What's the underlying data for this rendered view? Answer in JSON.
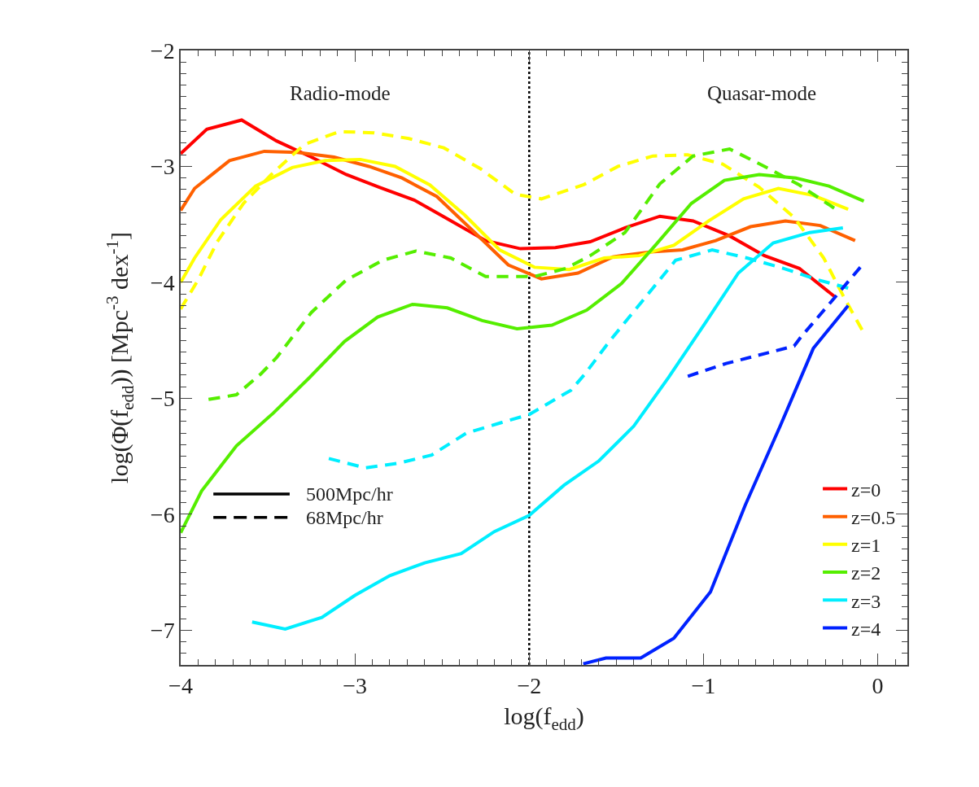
{
  "chart_data": {
    "type": "line",
    "xlabel": "log(f$_{edd}$)",
    "ylabel": "log(Φ(f$_{edd}$)) [Mpc$^{-3}$ dex$^{-1}$]",
    "annotations": [
      "Radio-mode",
      "Quasar-mode",
      "500Mpc/hr",
      "68Mpc/hr"
    ],
    "xlim": [
      -4,
      0.17
    ],
    "ylim": [
      -7.3,
      -2
    ],
    "xticks": [
      -4,
      -3,
      -2,
      -1,
      0
    ],
    "yticks": [
      -7,
      -6,
      -5,
      -4,
      -3,
      -2
    ],
    "grid": false,
    "legend": "bottom right",
    "ref_lines": [
      {
        "axis": "x",
        "value": -2,
        "color": "#000000",
        "line_style": "dotted"
      }
    ],
    "series": [
      {
        "name": "z=0",
        "color": "#ff0000",
        "line_style": "solid",
        "x": [
          -4,
          -3.85,
          -3.65,
          -3.45,
          -3.25,
          -3.05,
          -2.86,
          -2.66,
          -2.46,
          -2.25,
          -2.05,
          -1.85,
          -1.65,
          -1.45,
          -1.25,
          -1.06,
          -0.85,
          -0.65,
          -0.45,
          -0.25
        ],
        "values": [
          -2.89,
          -2.68,
          -2.6,
          -2.78,
          -2.92,
          -3.07,
          -3.18,
          -3.29,
          -3.46,
          -3.64,
          -3.71,
          -3.7,
          -3.65,
          -3.53,
          -3.43,
          -3.47,
          -3.6,
          -3.77,
          -3.88,
          -4.12
        ]
      },
      {
        "name": "z=0.5",
        "color": "#ff6000",
        "line_style": "solid",
        "x": [
          -4,
          -3.92,
          -3.72,
          -3.52,
          -3.33,
          -3.12,
          -2.92,
          -2.73,
          -2.53,
          -2.32,
          -2.12,
          -1.93,
          -1.72,
          -1.52,
          -1.32,
          -1.12,
          -0.93,
          -0.73,
          -0.53,
          -0.33,
          -0.13
        ],
        "values": [
          -3.38,
          -3.19,
          -2.95,
          -2.87,
          -2.88,
          -2.92,
          -3.0,
          -3.1,
          -3.26,
          -3.56,
          -3.85,
          -3.97,
          -3.92,
          -3.78,
          -3.74,
          -3.72,
          -3.64,
          -3.52,
          -3.47,
          -3.51,
          -3.64
        ]
      },
      {
        "name": "z=1",
        "color": "#ffff00",
        "line_style": "solid",
        "x": [
          -4,
          -3.92,
          -3.77,
          -3.57,
          -3.36,
          -3.17,
          -2.97,
          -2.77,
          -2.57,
          -2.37,
          -2.17,
          -1.97,
          -1.77,
          -1.57,
          -1.37,
          -1.17,
          -0.97,
          -0.77,
          -0.57,
          -0.37,
          -0.17
        ],
        "values": [
          -4.0,
          -3.79,
          -3.46,
          -3.17,
          -3.01,
          -2.95,
          -2.94,
          -3.0,
          -3.16,
          -3.42,
          -3.72,
          -3.87,
          -3.89,
          -3.79,
          -3.77,
          -3.68,
          -3.47,
          -3.28,
          -3.19,
          -3.25,
          -3.37
        ]
      },
      {
        "color": "#ffff00",
        "line_style": "dashed",
        "x": [
          -4,
          -3.9,
          -3.79,
          -3.64,
          -3.48,
          -3.29,
          -3.09,
          -2.89,
          -2.69,
          -2.49,
          -2.28,
          -2.08,
          -1.93,
          -1.69,
          -1.49,
          -1.29,
          -1.09,
          -0.89,
          -0.68,
          -0.48,
          -0.31,
          -0.19,
          -0.09
        ],
        "values": [
          -4.23,
          -3.98,
          -3.65,
          -3.32,
          -3.07,
          -2.81,
          -2.7,
          -2.71,
          -2.76,
          -2.84,
          -3.02,
          -3.24,
          -3.28,
          -3.16,
          -3.0,
          -2.91,
          -2.9,
          -2.98,
          -3.18,
          -3.44,
          -3.79,
          -4.14,
          -4.41
        ]
      },
      {
        "name": "z=2",
        "color": "#55ee00",
        "line_style": "solid",
        "x": [
          -4,
          -3.88,
          -3.68,
          -3.47,
          -3.26,
          -3.06,
          -2.87,
          -2.67,
          -2.47,
          -2.27,
          -2.07,
          -1.87,
          -1.67,
          -1.47,
          -1.27,
          -1.07,
          -0.88,
          -0.68,
          -0.47,
          -0.28,
          -0.08
        ],
        "values": [
          -6.16,
          -5.8,
          -5.41,
          -5.13,
          -4.82,
          -4.51,
          -4.3,
          -4.19,
          -4.22,
          -4.33,
          -4.4,
          -4.37,
          -4.24,
          -4.01,
          -3.67,
          -3.32,
          -3.12,
          -3.07,
          -3.1,
          -3.17,
          -3.3
        ]
      },
      {
        "color": "#55ee00",
        "line_style": "dashed",
        "x": [
          -3.84,
          -3.68,
          -3.54,
          -3.45,
          -3.25,
          -3.05,
          -2.84,
          -2.65,
          -2.45,
          -2.25,
          -2.05,
          -1.97,
          -1.79,
          -1.65,
          -1.45,
          -1.25,
          -1.06,
          -0.85,
          -0.65,
          -0.45,
          -0.25
        ],
        "values": [
          -5.01,
          -4.97,
          -4.79,
          -4.65,
          -4.26,
          -3.98,
          -3.81,
          -3.73,
          -3.79,
          -3.95,
          -3.95,
          -3.95,
          -3.88,
          -3.77,
          -3.57,
          -3.15,
          -2.91,
          -2.85,
          -3.0,
          -3.16,
          -3.36
        ]
      },
      {
        "name": "z=3",
        "color": "#00eeff",
        "line_style": "solid",
        "x": [
          -3.59,
          -3.4,
          -3.19,
          -3.0,
          -2.8,
          -2.6,
          -2.39,
          -2.2,
          -2.0,
          -1.8,
          -1.6,
          -1.4,
          -1.2,
          -0.99,
          -0.8,
          -0.6,
          -0.39,
          -0.2
        ],
        "values": [
          -6.93,
          -6.99,
          -6.89,
          -6.7,
          -6.53,
          -6.42,
          -6.34,
          -6.15,
          -6.01,
          -5.75,
          -5.54,
          -5.24,
          -4.82,
          -4.35,
          -3.92,
          -3.66,
          -3.57,
          -3.53
        ]
      },
      {
        "color": "#00eeff",
        "line_style": "dashed",
        "x": [
          -3.15,
          -2.94,
          -2.75,
          -2.56,
          -2.36,
          -2.16,
          -2.0,
          -1.76,
          -1.68,
          -1.54,
          -1.35,
          -1.16,
          -0.95,
          -0.75,
          -0.54,
          -0.34,
          -0.17
        ],
        "values": [
          -5.52,
          -5.6,
          -5.56,
          -5.49,
          -5.3,
          -5.21,
          -5.14,
          -4.93,
          -4.79,
          -4.51,
          -4.16,
          -3.81,
          -3.72,
          -3.79,
          -3.88,
          -3.98,
          -4.05
        ]
      },
      {
        "name": "z=4",
        "color": "#0022ff",
        "line_style": "solid",
        "x": [
          -1.69,
          -1.56,
          -1.36,
          -1.17,
          -0.96,
          -0.76,
          -0.56,
          -0.37,
          -0.17
        ],
        "values": [
          -7.29,
          -7.24,
          -7.24,
          -7.07,
          -6.67,
          -5.92,
          -5.24,
          -4.57,
          -4.2
        ]
      },
      {
        "color": "#0022ff",
        "line_style": "dashed",
        "x": [
          -1.09,
          -0.87,
          -0.48,
          -0.44,
          -0.28,
          -0.1
        ],
        "values": [
          -4.81,
          -4.7,
          -4.55,
          -4.47,
          -4.19,
          -3.87
        ]
      }
    ]
  }
}
